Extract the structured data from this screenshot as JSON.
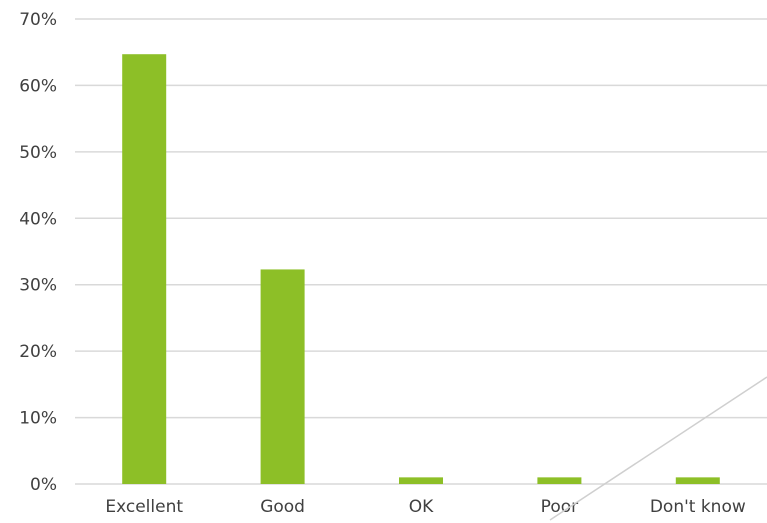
{
  "chart_data": {
    "type": "bar",
    "categories": [
      "Excellent",
      "Good",
      "OK",
      "Poor",
      "Don't know"
    ],
    "values": [
      64.7,
      32.3,
      1.0,
      1.0,
      1.0
    ],
    "ylim": [
      0,
      70
    ],
    "yticks": [
      0,
      10,
      20,
      30,
      40,
      50,
      60,
      70
    ],
    "ytick_labels": [
      "0%",
      "10%",
      "20%",
      "30%",
      "40%",
      "50%",
      "60%",
      "70%"
    ],
    "title": "",
    "xlabel": "",
    "ylabel": "",
    "grid": true,
    "legend": false,
    "colors": {
      "bar": "#8dbf27",
      "grid": "#d9d9d9",
      "text": "#404040"
    }
  }
}
